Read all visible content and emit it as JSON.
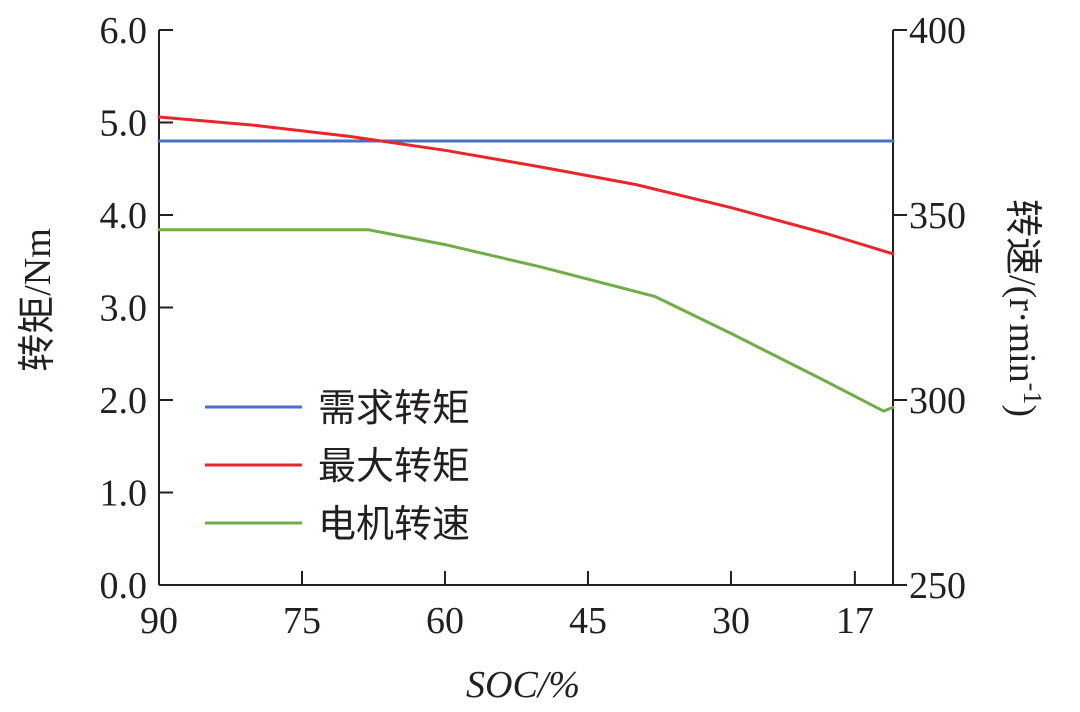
{
  "chart_data": {
    "type": "line",
    "xlabel": "SOC/%",
    "x_ticks": [
      "90",
      "75",
      "60",
      "45",
      "30",
      "17"
    ],
    "xlim": [
      90,
      13
    ],
    "x_reversed": true,
    "y_left": {
      "label": "转矩/Nm",
      "ticks": [
        "0.0",
        "1.0",
        "2.0",
        "3.0",
        "4.0",
        "5.0",
        "6.0"
      ],
      "lim": [
        0,
        6
      ]
    },
    "y_right": {
      "label_main": "转速/(r·min",
      "label_sup": "-1",
      "label_close": ")",
      "ticks": [
        "250",
        "300",
        "350",
        "400"
      ],
      "lim": [
        250,
        400
      ]
    },
    "series": [
      {
        "name": "需求转矩",
        "color": "#4472c4",
        "axis": "left",
        "x": [
          90,
          13
        ],
        "y": [
          4.8,
          4.8
        ]
      },
      {
        "name": "最大转矩",
        "color": "#e8262c",
        "axis": "left",
        "x": [
          90,
          80,
          70,
          60,
          50,
          40,
          30,
          20,
          13
        ],
        "y": [
          5.06,
          4.97,
          4.85,
          4.7,
          4.52,
          4.33,
          4.08,
          3.8,
          3.58
        ]
      },
      {
        "name": "电机转速",
        "color": "#70ad47",
        "axis": "right",
        "x": [
          90,
          68,
          60,
          50,
          38,
          30,
          20,
          14,
          13
        ],
        "y": [
          346,
          346,
          342,
          336,
          328,
          318,
          305,
          297,
          298
        ]
      }
    ],
    "legend_position": "lower-left",
    "grid": false
  }
}
